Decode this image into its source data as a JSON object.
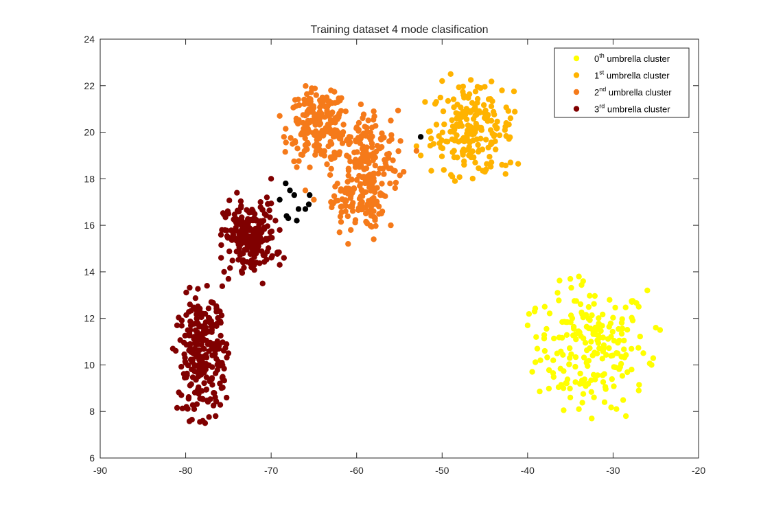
{
  "chart_data": {
    "type": "scatter",
    "title": "Training dataset 4 mode clasification",
    "xlabel": "",
    "ylabel": "",
    "xlim": [
      -90,
      -20
    ],
    "ylim": [
      6,
      24
    ],
    "xticks": [
      -90,
      -80,
      -70,
      -60,
      -50,
      -40,
      -30,
      -20
    ],
    "yticks": [
      6,
      8,
      10,
      12,
      14,
      16,
      18,
      20,
      22,
      24
    ],
    "grid": false,
    "legend_position": "top-right",
    "series": [
      {
        "name": "0th umbrella cluster",
        "legend_base": "0",
        "legend_sup": "th",
        "legend_rest": " umbrella cluster",
        "color": "#FFFF00",
        "cluster": {
          "cx": -32.5,
          "cy": 10.8,
          "sx": 3.2,
          "sy": 1.3,
          "n": 190
        },
        "points": [
          [
            -40,
            11.7
          ],
          [
            -38,
            12.5
          ],
          [
            -36.5,
            13.1
          ],
          [
            -35,
            13.7
          ],
          [
            -34,
            13.8
          ],
          [
            -33.5,
            13.6
          ],
          [
            -26,
            13.2
          ],
          [
            -27,
            12.5
          ],
          [
            -25,
            11.6
          ],
          [
            -24.5,
            11.5
          ],
          [
            -25.5,
            10.0
          ],
          [
            -27,
            8.9
          ],
          [
            -28.5,
            7.8
          ],
          [
            -31,
            8.4
          ],
          [
            -32.5,
            7.7
          ],
          [
            -34,
            8.1
          ],
          [
            -35,
            8.6
          ],
          [
            -37,
            10.2
          ],
          [
            -38.5,
            10.2
          ],
          [
            -39,
            11.2
          ]
        ]
      },
      {
        "name": "1st umbrella cluster",
        "legend_base": "1",
        "legend_sup": "st",
        "legend_rest": " umbrella cluster",
        "color": "#FFB300",
        "cluster": {
          "cx": -46.5,
          "cy": 20.1,
          "sx": 2.4,
          "sy": 0.95,
          "n": 190
        },
        "points": [
          [
            -49,
            22.5
          ],
          [
            -50,
            22.2
          ],
          [
            -45.5,
            21.9
          ],
          [
            -52,
            21.3
          ],
          [
            -53,
            19.4
          ],
          [
            -52.5,
            19.0
          ],
          [
            -51,
            19.5
          ],
          [
            -48.5,
            17.9
          ],
          [
            -45,
            18.3
          ],
          [
            -43,
            18.6
          ],
          [
            -42,
            18.7
          ],
          [
            -42,
            20.6
          ],
          [
            -43,
            21.8
          ],
          [
            -47.5,
            21.6
          ]
        ]
      },
      {
        "name": "2nd umbrella cluster",
        "legend_base": "2",
        "legend_sup": "nd",
        "legend_rest": " umbrella cluster",
        "color": "#F57A1A",
        "clusters": [
          {
            "cx": -64.5,
            "cy": 20.3,
            "sx": 1.7,
            "sy": 0.75,
            "n": 190
          },
          {
            "cx": -59.0,
            "cy": 18.8,
            "sx": 1.9,
            "sy": 1.05,
            "n": 190
          },
          {
            "cx": -60.0,
            "cy": 16.8,
            "sx": 1.5,
            "sy": 0.45,
            "n": 70
          }
        ],
        "points": [
          [
            -69,
            20.7
          ],
          [
            -66.5,
            19.9
          ],
          [
            -67,
            18.5
          ],
          [
            -66,
            17.5
          ],
          [
            -65,
            17.1
          ],
          [
            -63,
            17.0
          ],
          [
            -62,
            15.7
          ],
          [
            -61,
            15.2
          ],
          [
            -58,
            15.4
          ],
          [
            -57,
            16.6
          ],
          [
            -56,
            16.0
          ],
          [
            -55.5,
            17.6
          ],
          [
            -54.5,
            18.3
          ],
          [
            -53,
            19.2
          ],
          [
            -56,
            20.5
          ],
          [
            -58,
            20.9
          ],
          [
            -59.5,
            21.2
          ],
          [
            -63,
            21.8
          ],
          [
            -63.5,
            21.5
          ],
          [
            -66,
            21.3
          ],
          [
            -67.5,
            19.5
          ],
          [
            -68.5,
            19.8
          ]
        ]
      },
      {
        "name": "3rd umbrella cluster",
        "legend_base": "3",
        "legend_sup": "rd",
        "legend_rest": " umbrella cluster",
        "color": "#800000",
        "clusters": [
          {
            "cx": -72.5,
            "cy": 15.5,
            "sx": 1.5,
            "sy": 0.7,
            "n": 220
          },
          {
            "cx": -78.0,
            "cy": 10.4,
            "sx": 1.4,
            "sy": 1.3,
            "n": 250
          }
        ],
        "points": [
          [
            -70,
            18.0
          ],
          [
            -74,
            17.4
          ],
          [
            -75,
            16.5
          ],
          [
            -75.5,
            14.0
          ],
          [
            -75,
            13.7
          ],
          [
            -71,
            13.5
          ],
          [
            -69,
            14.3
          ],
          [
            -68.5,
            14.6
          ],
          [
            -69,
            15.8
          ],
          [
            -69.5,
            16.2
          ],
          [
            -70.5,
            17.2
          ],
          [
            -77.5,
            13.4
          ],
          [
            -76,
            12.3
          ],
          [
            -75,
            10.5
          ],
          [
            -76,
            9.2
          ],
          [
            -76.5,
            7.8
          ],
          [
            -78,
            7.6
          ],
          [
            -79,
            8.1
          ],
          [
            -80.5,
            8.7
          ],
          [
            -81.5,
            10.7
          ],
          [
            -81,
            11.7
          ],
          [
            -79.5,
            12.6
          ],
          [
            -77,
            12.7
          ]
        ]
      },
      {
        "name": "",
        "color": "#000000",
        "points": [
          [
            -68.3,
            17.8
          ],
          [
            -67.8,
            17.5
          ],
          [
            -67.3,
            17.3
          ],
          [
            -69.0,
            17.1
          ],
          [
            -68.2,
            16.4
          ],
          [
            -67.0,
            16.2
          ],
          [
            -66.8,
            16.7
          ],
          [
            -66.0,
            16.7
          ],
          [
            -65.6,
            16.9
          ],
          [
            -65.5,
            17.3
          ],
          [
            -52.5,
            19.8
          ],
          [
            -68.0,
            16.3
          ]
        ]
      }
    ]
  }
}
